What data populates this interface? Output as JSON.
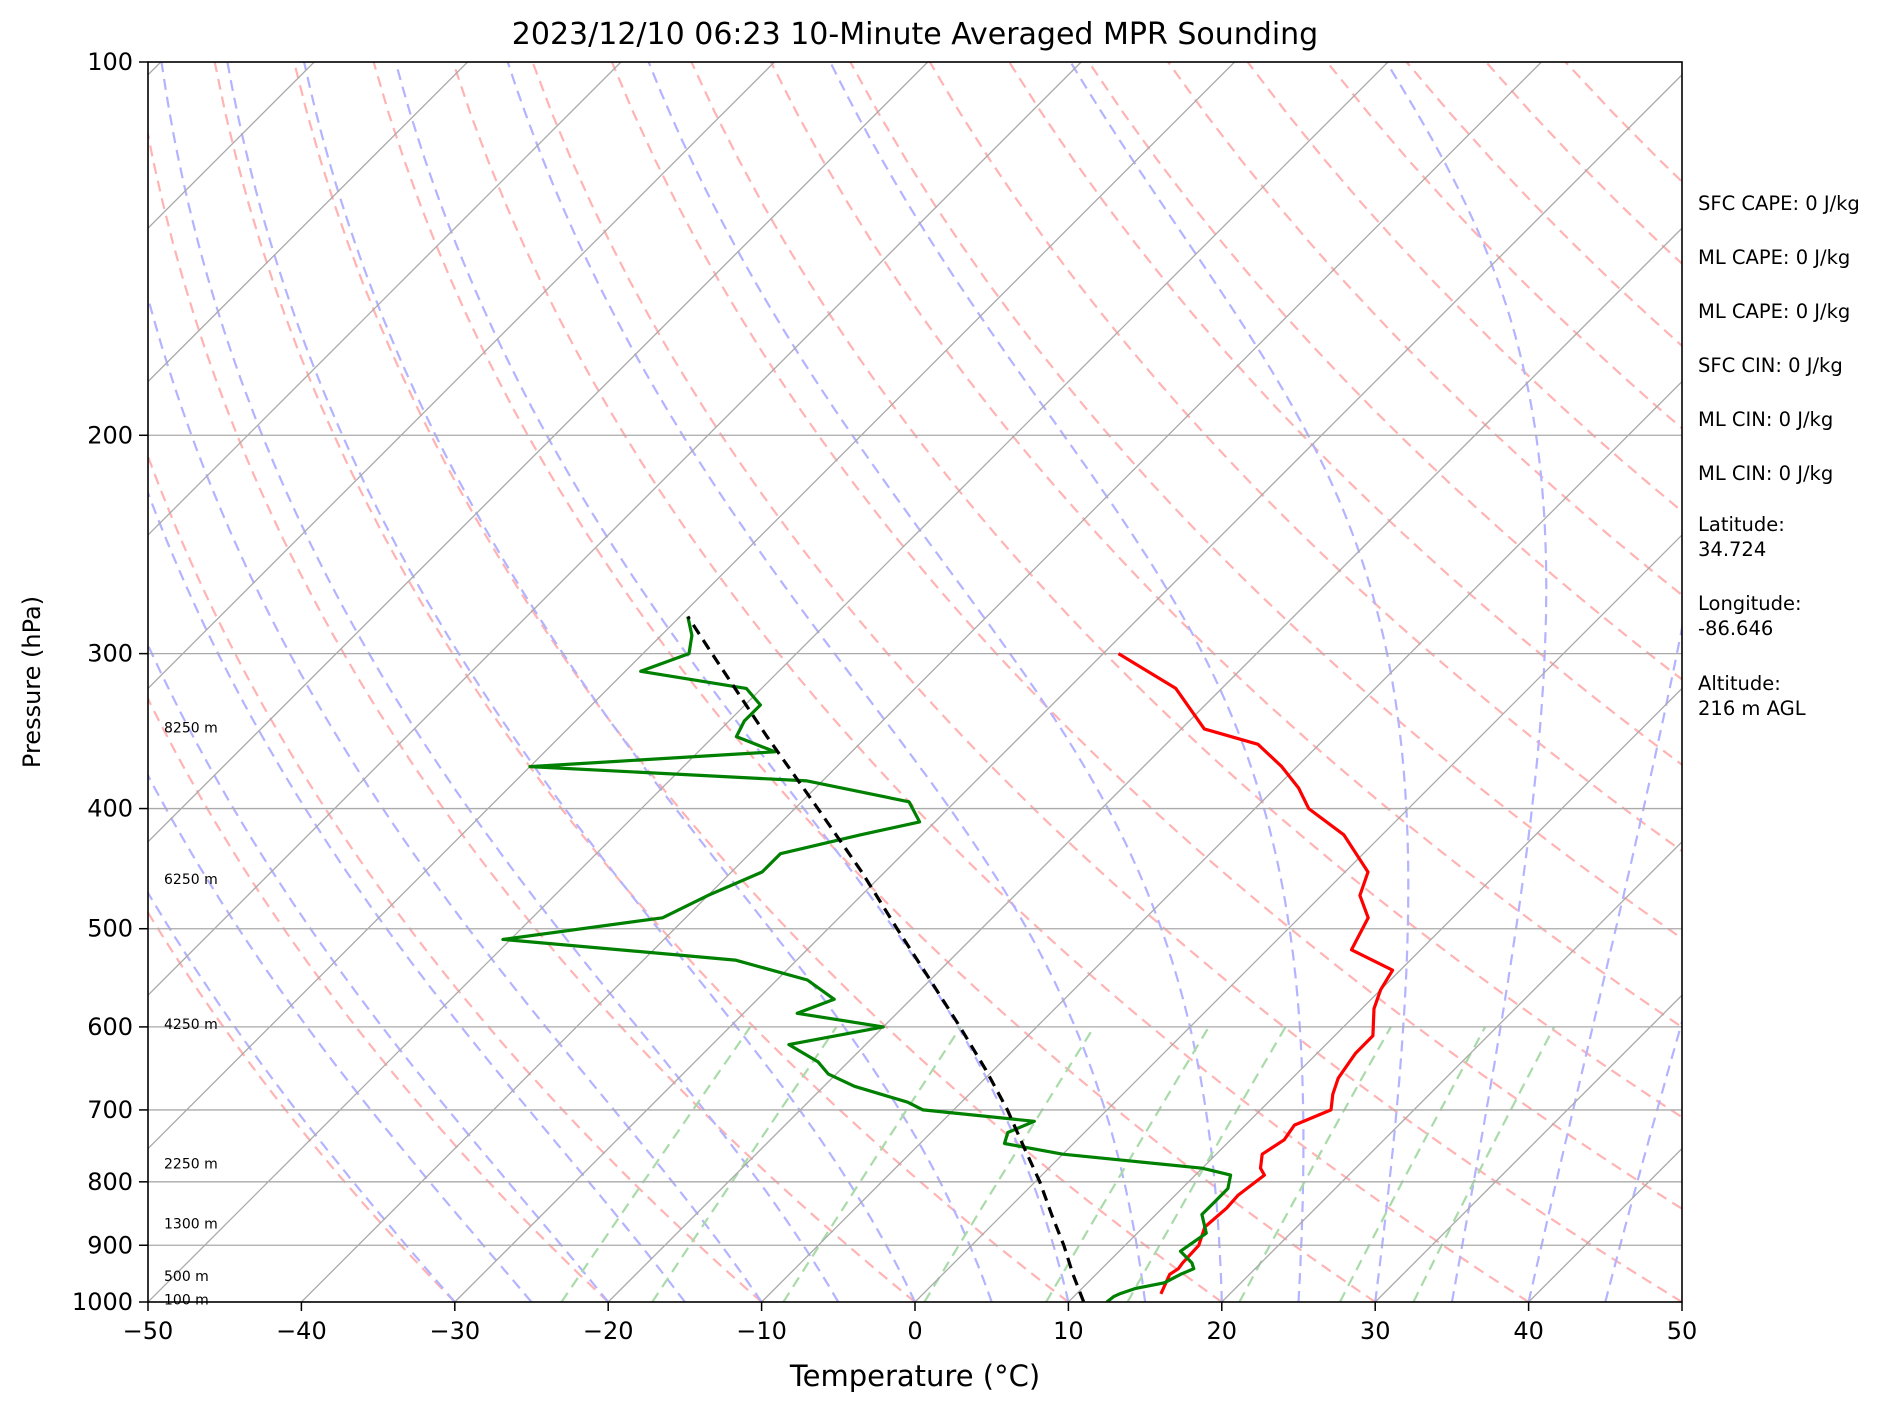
{
  "chart_data": {
    "type": "line",
    "title": "2023/12/10 06:23 10-Minute Averaged MPR Sounding",
    "xlabel": "Temperature (°C)",
    "ylabel": "Pressure (hPa)",
    "xlim": [
      -50,
      50
    ],
    "ylim": [
      1000,
      100
    ],
    "y_scale": "log",
    "skew": true,
    "x_ticks": [
      "−50",
      "−40",
      "−30",
      "−20",
      "−10",
      "0",
      "10",
      "20",
      "30",
      "40",
      "50"
    ],
    "y_ticks": [
      "100",
      "200",
      "300",
      "400",
      "500",
      "600",
      "700",
      "800",
      "900",
      "1000"
    ],
    "grid": true,
    "colors": {
      "temperature": "#ff0000",
      "dewpoint": "#008000",
      "parcel": "#000000",
      "isotherm": "#aaaaaa",
      "dry_adiabat": "#ffb3b3",
      "moist_adiabat": "#b3b3ff",
      "mixing_ratio": "#a9dba9"
    },
    "series": [
      {
        "key": "temperature",
        "color": "#ff0000",
        "p": [
          985,
          950,
          940,
          930,
          900,
          870,
          840,
          820,
          790,
          780,
          760,
          740,
          720,
          700,
          680,
          660,
          630,
          610,
          580,
          560,
          540,
          520,
          490,
          470,
          450,
          420,
          400,
          385,
          370,
          355,
          345,
          320,
          300
        ],
        "values": [
          15.5,
          14.8,
          15.0,
          14.9,
          14.8,
          14.0,
          14.2,
          14.1,
          14.5,
          13.8,
          13.0,
          13.5,
          13.2,
          14.6,
          13.7,
          13.0,
          12.5,
          12.5,
          10.8,
          10.0,
          9.5,
          5.5,
          4.5,
          2.5,
          1.5,
          -2.5,
          -6.5,
          -8.5,
          -11.0,
          -14.0,
          -18.5,
          -23.0,
          -29.0
        ]
      },
      {
        "key": "dewpoint",
        "color": "#008000",
        "p": [
          1000,
          990,
          985,
          975,
          965,
          950,
          940,
          930,
          910,
          880,
          850,
          830,
          810,
          790,
          780,
          770,
          760,
          745,
          730,
          715,
          700,
          690,
          670,
          655,
          640,
          620,
          600,
          585,
          570,
          550,
          530,
          510,
          490,
          470,
          450,
          435,
          420,
          410,
          395,
          380,
          370,
          360,
          350,
          340,
          330,
          320,
          310,
          300,
          290,
          280
        ],
        "values": [
          12.5,
          12.6,
          12.8,
          13.5,
          15.0,
          15.5,
          16.0,
          15.5,
          14.0,
          14.5,
          13.0,
          13.0,
          13.0,
          12.3,
          10.0,
          5.0,
          0.0,
          -4.5,
          -5.0,
          -4.0,
          -12.0,
          -13.5,
          -18.0,
          -20.5,
          -22.0,
          -25.0,
          -20.0,
          -26.5,
          -25.0,
          -28.0,
          -34.0,
          -50.5,
          -41.5,
          -40.0,
          -38.0,
          -38.0,
          -34.0,
          -31.0,
          -33.0,
          -41.0,
          -60.0,
          -45.0,
          -48.5,
          -49.0,
          -49.0,
          -51.0,
          -59.0,
          -57.0,
          -58.0,
          -59.5
        ]
      },
      {
        "key": "parcel",
        "color": "#000000",
        "dashed": true,
        "p": [
          1000,
          950,
          900,
          850,
          800,
          750,
          700,
          650,
          600,
          550,
          500,
          450,
          400,
          350,
          300,
          280
        ],
        "values": [
          11.0,
          8.5,
          6.0,
          3.2,
          0.3,
          -3.0,
          -6.5,
          -10.5,
          -15.0,
          -20.0,
          -25.5,
          -31.5,
          -38.5,
          -46.5,
          -55.5,
          -59.5
        ]
      }
    ],
    "height_labels": [
      {
        "label": "100 m",
        "p": 995
      },
      {
        "label": "500 m",
        "p": 953
      },
      {
        "label": "1300 m",
        "p": 864
      },
      {
        "label": "2250 m",
        "p": 773
      },
      {
        "label": "4250 m",
        "p": 597
      },
      {
        "label": "6250 m",
        "p": 456
      },
      {
        "label": "8250 m",
        "p": 344
      }
    ],
    "annotations": [
      "SFC CAPE: 0 J/kg",
      "ML CAPE: 0 J/kg",
      "ML CAPE: 0 J/kg",
      "SFC CIN: 0 J/kg",
      "ML CIN: 0 J/kg",
      "ML CIN: 0 J/kg"
    ]
  },
  "info": {
    "lat_label": "Latitude:",
    "lat_value": "34.724",
    "lon_label": "Longitude:",
    "lon_value": "-86.646",
    "alt_label": "Altitude:",
    "alt_value": "216 m AGL"
  }
}
